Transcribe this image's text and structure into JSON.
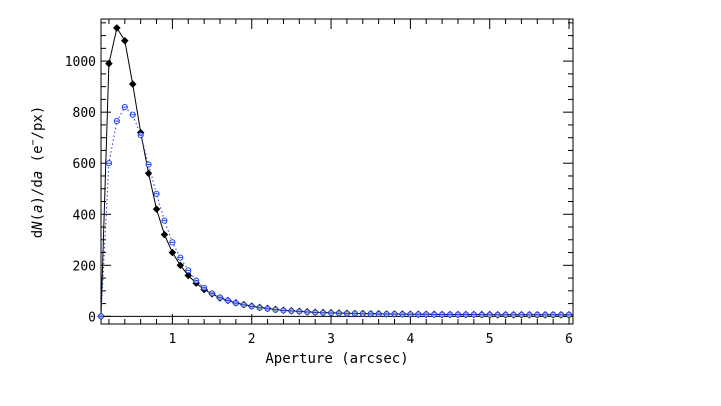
{
  "chart_data": {
    "type": "line",
    "title": "",
    "xlabel": "Aperture (arcsec)",
    "ylabel": "dN(a)/da (e⁻/px)",
    "ylabel_parts": {
      "a": "d",
      "b": "N",
      "c": "(",
      "d": "a",
      "e": ")/d",
      "f": "a",
      "g": " (e",
      "h": "−",
      "i": "/px)"
    },
    "xlim": [
      0.1,
      6.05
    ],
    "ylim": [
      -30,
      1165
    ],
    "xticks": [
      1,
      2,
      3,
      4,
      5,
      6
    ],
    "xtick_labels": [
      "1",
      "2",
      "3",
      "4",
      "5",
      "6"
    ],
    "yticks": [
      0,
      200,
      400,
      600,
      800,
      1000
    ],
    "ytick_labels": [
      "0",
      "200",
      "400",
      "600",
      "800",
      "1000"
    ],
    "grid": false,
    "zero_line": true,
    "series": [
      {
        "style": "solid",
        "color": "#000000",
        "marker": "filled-diamond",
        "x": [
          0.1,
          0.2,
          0.3,
          0.4,
          0.5,
          0.6,
          0.7,
          0.8,
          0.9,
          1.0,
          1.1,
          1.2,
          1.3,
          1.4,
          1.5,
          1.6,
          1.7,
          1.8,
          1.9,
          2.0,
          2.1,
          2.2,
          2.3,
          2.4,
          2.5,
          2.6,
          2.7,
          2.8,
          2.9,
          3.0,
          3.1,
          3.2,
          3.3,
          3.4,
          3.5,
          3.6,
          3.7,
          3.8,
          3.9,
          4.0,
          4.1,
          4.2,
          4.3,
          4.4,
          4.5,
          4.6,
          4.7,
          4.8,
          4.9,
          5.0,
          5.1,
          5.2,
          5.3,
          5.4,
          5.5,
          5.6,
          5.7,
          5.8,
          5.9,
          6.0
        ],
        "y": [
          0,
          990,
          1130,
          1080,
          910,
          720,
          560,
          420,
          320,
          250,
          200,
          160,
          130,
          105,
          88,
          72,
          62,
          53,
          46,
          40,
          35,
          31,
          27,
          24,
          22,
          20,
          18,
          16,
          15,
          14,
          13,
          12,
          11,
          11,
          10,
          10,
          9,
          9,
          9,
          8,
          8,
          8,
          8,
          7,
          7,
          7,
          7,
          7,
          7,
          7,
          6,
          6,
          6,
          6,
          6,
          6,
          6,
          6,
          6,
          6
        ]
      },
      {
        "style": "dotted",
        "color": "#1a3ae8",
        "marker": "open-circle-dash",
        "x": [
          0.1,
          0.2,
          0.3,
          0.4,
          0.5,
          0.6,
          0.7,
          0.8,
          0.9,
          1.0,
          1.1,
          1.2,
          1.3,
          1.4,
          1.5,
          1.6,
          1.7,
          1.8,
          1.9,
          2.0,
          2.1,
          2.2,
          2.3,
          2.4,
          2.5,
          2.6,
          2.7,
          2.8,
          2.9,
          3.0,
          3.1,
          3.2,
          3.3,
          3.4,
          3.5,
          3.6,
          3.7,
          3.8,
          3.9,
          4.0,
          4.1,
          4.2,
          4.3,
          4.4,
          4.5,
          4.6,
          4.7,
          4.8,
          4.9,
          5.0,
          5.1,
          5.2,
          5.3,
          5.4,
          5.5,
          5.6,
          5.7,
          5.8,
          5.9,
          6.0
        ],
        "y": [
          0,
          600,
          765,
          820,
          790,
          710,
          595,
          480,
          375,
          290,
          230,
          180,
          140,
          112,
          90,
          74,
          62,
          52,
          45,
          39,
          34,
          30,
          26,
          23,
          21,
          19,
          17,
          15,
          14,
          13,
          12,
          11,
          11,
          10,
          10,
          9,
          9,
          9,
          8,
          8,
          8,
          8,
          7,
          7,
          7,
          7,
          7,
          7,
          6,
          6,
          6,
          6,
          6,
          6,
          6,
          6,
          6,
          6,
          6,
          6
        ]
      }
    ]
  }
}
